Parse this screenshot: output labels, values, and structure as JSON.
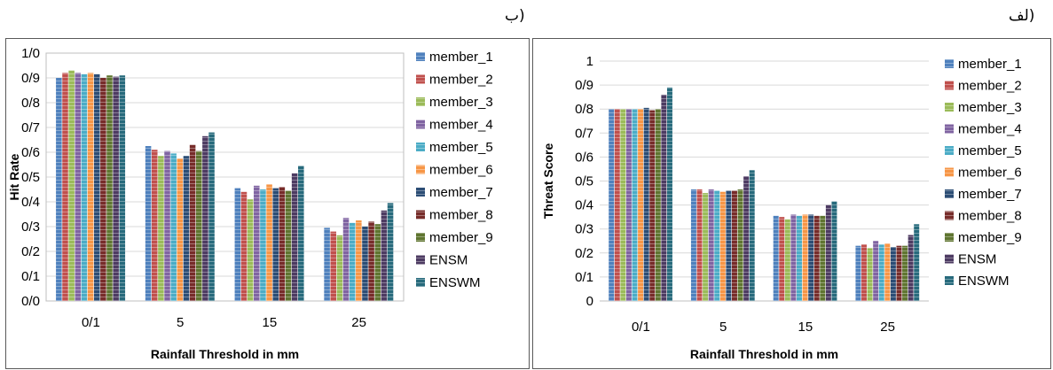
{
  "labels": {
    "left_panel": "ب)",
    "right_panel": "لف)"
  },
  "chart_data": [
    {
      "type": "bar",
      "panel": "left",
      "ylabel": "Hit Rate",
      "xlabel": "Rainfall Threshold in mm",
      "ylim": [
        0,
        1.0
      ],
      "yticks": [
        "0/0",
        "0/1",
        "0/2",
        "0/3",
        "0/4",
        "0/5",
        "0/6",
        "0/7",
        "0/8",
        "0/9",
        "1/0"
      ],
      "categories": [
        "0/1",
        "5",
        "15",
        "25"
      ],
      "grid": true,
      "legend_position": "right",
      "series": [
        {
          "name": "member_1",
          "color": "#4F81BD",
          "values": [
            0.9,
            0.625,
            0.455,
            0.295
          ]
        },
        {
          "name": "member_2",
          "color": "#C0504D",
          "values": [
            0.92,
            0.61,
            0.44,
            0.28
          ]
        },
        {
          "name": "member_3",
          "color": "#9BBB59",
          "values": [
            0.93,
            0.585,
            0.41,
            0.265
          ]
        },
        {
          "name": "member_4",
          "color": "#8064A2",
          "values": [
            0.92,
            0.605,
            0.465,
            0.335
          ]
        },
        {
          "name": "member_5",
          "color": "#4BACC6",
          "values": [
            0.915,
            0.595,
            0.45,
            0.315
          ]
        },
        {
          "name": "member_6",
          "color": "#F79646",
          "values": [
            0.92,
            0.575,
            0.47,
            0.325
          ]
        },
        {
          "name": "member_7",
          "color": "#2C4D75",
          "values": [
            0.915,
            0.585,
            0.455,
            0.3
          ]
        },
        {
          "name": "member_8",
          "color": "#772C2A",
          "values": [
            0.9,
            0.63,
            0.46,
            0.32
          ]
        },
        {
          "name": "member_9",
          "color": "#5F7530",
          "values": [
            0.91,
            0.605,
            0.445,
            0.31
          ]
        },
        {
          "name": "ENSM",
          "color": "#4D3B62",
          "values": [
            0.905,
            0.665,
            0.515,
            0.365
          ]
        },
        {
          "name": "ENSWM",
          "color": "#276A7C",
          "values": [
            0.91,
            0.68,
            0.545,
            0.395
          ]
        }
      ]
    },
    {
      "type": "bar",
      "panel": "right",
      "ylabel": "Threat Score",
      "xlabel": "Rainfall Threshold in mm",
      "ylim": [
        0,
        1.0
      ],
      "yticks": [
        "0",
        "0/1",
        "0/2",
        "0/3",
        "0/4",
        "0/5",
        "0/6",
        "0/7",
        "0/8",
        "0/9",
        "1"
      ],
      "categories": [
        "0/1",
        "5",
        "15",
        "25"
      ],
      "grid": true,
      "legend_position": "right",
      "series": [
        {
          "name": "member_1",
          "color": "#4F81BD",
          "values": [
            0.8,
            0.465,
            0.355,
            0.23
          ]
        },
        {
          "name": "member_2",
          "color": "#C0504D",
          "values": [
            0.8,
            0.465,
            0.35,
            0.235
          ]
        },
        {
          "name": "member_3",
          "color": "#9BBB59",
          "values": [
            0.8,
            0.45,
            0.34,
            0.22
          ]
        },
        {
          "name": "member_4",
          "color": "#8064A2",
          "values": [
            0.8,
            0.465,
            0.36,
            0.25
          ]
        },
        {
          "name": "member_5",
          "color": "#4BACC6",
          "values": [
            0.8,
            0.46,
            0.355,
            0.235
          ]
        },
        {
          "name": "member_6",
          "color": "#F79646",
          "values": [
            0.8,
            0.455,
            0.36,
            0.24
          ]
        },
        {
          "name": "member_7",
          "color": "#2C4D75",
          "values": [
            0.805,
            0.46,
            0.36,
            0.225
          ]
        },
        {
          "name": "member_8",
          "color": "#772C2A",
          "values": [
            0.795,
            0.46,
            0.355,
            0.23
          ]
        },
        {
          "name": "member_9",
          "color": "#5F7530",
          "values": [
            0.8,
            0.465,
            0.355,
            0.23
          ]
        },
        {
          "name": "ENSM",
          "color": "#4D3B62",
          "values": [
            0.86,
            0.52,
            0.4,
            0.275
          ]
        },
        {
          "name": "ENSWM",
          "color": "#276A7C",
          "values": [
            0.89,
            0.545,
            0.415,
            0.32
          ]
        }
      ]
    }
  ]
}
